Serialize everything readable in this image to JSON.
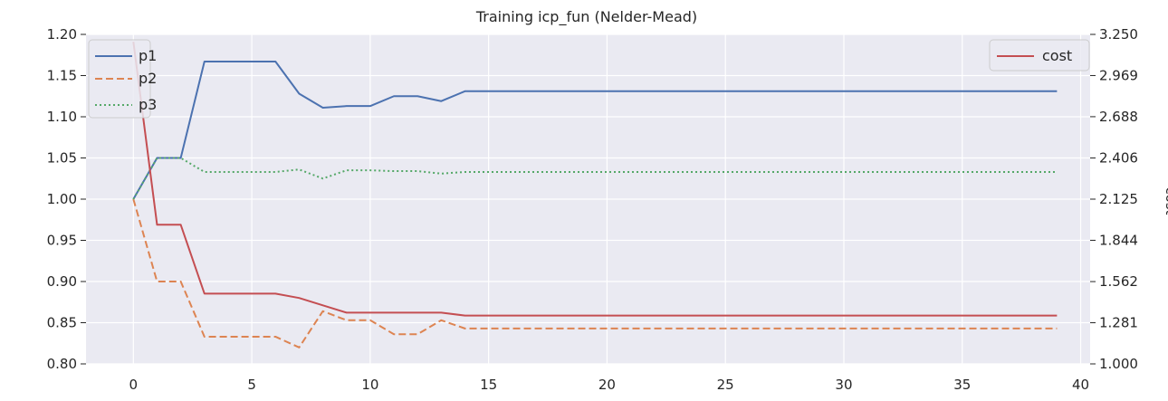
{
  "chart_data": {
    "type": "line",
    "title": "Training icp_fun (Nelder-Mead)",
    "xlabel": "",
    "ylabel": "",
    "y2label": "cost",
    "xlim": [
      -2,
      40.4
    ],
    "ylim": [
      0.8,
      1.2
    ],
    "y2lim": [
      1.0,
      3.25
    ],
    "xticks": [
      0,
      5,
      10,
      15,
      20,
      25,
      30,
      35,
      40
    ],
    "yticks": [
      "0.80",
      "0.85",
      "0.90",
      "0.95",
      "1.00",
      "1.05",
      "1.10",
      "1.15",
      "1.20"
    ],
    "y2ticks": [
      "1.000",
      "1.281",
      "1.562",
      "1.844",
      "2.125",
      "2.406",
      "2.688",
      "2.969",
      "3.250"
    ],
    "grid": true,
    "legend_left_placement": "top-left",
    "legend_right_placement": "top-right",
    "x": [
      0,
      1,
      2,
      3,
      4,
      5,
      6,
      7,
      8,
      9,
      10,
      11,
      12,
      13,
      14,
      15,
      16,
      17,
      18,
      19,
      20,
      21,
      22,
      23,
      24,
      25,
      26,
      27,
      28,
      29,
      30,
      31,
      32,
      33,
      34,
      35,
      36,
      37,
      38,
      39
    ],
    "series": [
      {
        "name": "p1",
        "axis": "left",
        "color": "#4c72b0",
        "dash": "solid",
        "values": [
          1.0,
          1.05,
          1.05,
          1.167,
          1.167,
          1.167,
          1.167,
          1.128,
          1.111,
          1.113,
          1.113,
          1.125,
          1.125,
          1.119,
          1.131,
          1.131,
          1.131,
          1.131,
          1.131,
          1.131,
          1.131,
          1.131,
          1.131,
          1.131,
          1.131,
          1.131,
          1.131,
          1.131,
          1.131,
          1.131,
          1.131,
          1.131,
          1.131,
          1.131,
          1.131,
          1.131,
          1.131,
          1.131,
          1.131,
          1.131
        ]
      },
      {
        "name": "p2",
        "axis": "left",
        "color": "#dd8452",
        "dash": "dashed",
        "values": [
          1.0,
          0.9,
          0.9,
          0.833,
          0.833,
          0.833,
          0.833,
          0.82,
          0.864,
          0.853,
          0.853,
          0.836,
          0.836,
          0.853,
          0.843,
          0.843,
          0.843,
          0.843,
          0.843,
          0.843,
          0.843,
          0.843,
          0.843,
          0.843,
          0.843,
          0.843,
          0.843,
          0.843,
          0.843,
          0.843,
          0.843,
          0.843,
          0.843,
          0.843,
          0.843,
          0.843,
          0.843,
          0.843,
          0.843,
          0.843
        ]
      },
      {
        "name": "p3",
        "axis": "left",
        "color": "#55a868",
        "dash": "dotted",
        "values": [
          1.0,
          1.05,
          1.05,
          1.033,
          1.033,
          1.033,
          1.033,
          1.036,
          1.025,
          1.035,
          1.035,
          1.034,
          1.034,
          1.031,
          1.033,
          1.033,
          1.033,
          1.033,
          1.033,
          1.033,
          1.033,
          1.033,
          1.033,
          1.033,
          1.033,
          1.033,
          1.033,
          1.033,
          1.033,
          1.033,
          1.033,
          1.033,
          1.033,
          1.033,
          1.033,
          1.033,
          1.033,
          1.033,
          1.033,
          1.033
        ]
      },
      {
        "name": "cost",
        "axis": "right",
        "color": "#c44e52",
        "dash": "solid",
        "values": [
          3.2,
          1.95,
          1.95,
          1.48,
          1.48,
          1.48,
          1.48,
          1.45,
          1.4,
          1.35,
          1.35,
          1.35,
          1.35,
          1.35,
          1.33,
          1.33,
          1.33,
          1.33,
          1.33,
          1.33,
          1.33,
          1.33,
          1.33,
          1.33,
          1.33,
          1.33,
          1.33,
          1.33,
          1.33,
          1.33,
          1.33,
          1.33,
          1.33,
          1.33,
          1.33,
          1.33,
          1.33,
          1.33,
          1.33,
          1.33
        ]
      }
    ]
  }
}
